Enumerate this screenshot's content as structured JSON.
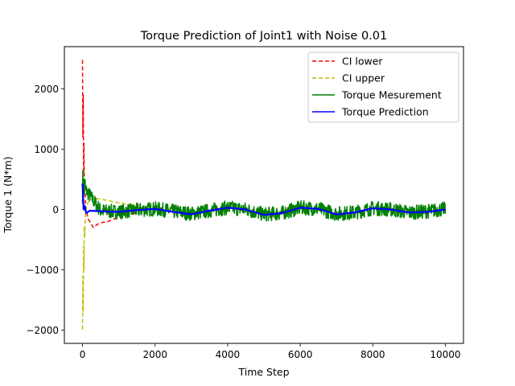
{
  "chart_data": {
    "type": "line",
    "title": "Torque Prediction of Joint1 with Noise 0.01",
    "xlabel": "Time Step",
    "ylabel": "Torque 1 (N*m)",
    "xlim": [
      -500,
      10500
    ],
    "ylim": [
      -2220,
      2700
    ],
    "xticks": [
      0,
      2000,
      4000,
      6000,
      8000,
      10000
    ],
    "xtick_labels": [
      "0",
      "2000",
      "4000",
      "6000",
      "8000",
      "10000"
    ],
    "yticks": [
      -2000,
      -1000,
      0,
      1000,
      2000
    ],
    "ytick_labels": [
      "−2000",
      "−1000",
      "0",
      "1000",
      "2000"
    ],
    "grid": false,
    "legend_position": "top-right",
    "series": [
      {
        "name": "CI lower",
        "color": "#ff0000",
        "style": "dashed",
        "x": [
          0,
          10,
          20,
          30,
          40,
          50,
          60,
          80,
          100,
          150,
          200,
          300,
          400,
          500,
          700,
          900,
          1200,
          1500
        ],
        "y": [
          2480,
          1200,
          1900,
          600,
          1100,
          300,
          500,
          100,
          0,
          -150,
          -200,
          -300,
          -250,
          -220,
          -200,
          -150,
          -100,
          -60
        ]
      },
      {
        "name": "CI upper",
        "color": "#bfbf00",
        "style": "dashed",
        "x": [
          0,
          10,
          20,
          30,
          40,
          50,
          60,
          80,
          100,
          150,
          200,
          300,
          400,
          500,
          700,
          900,
          1200,
          1500
        ],
        "y": [
          -1990,
          -1100,
          -1700,
          -600,
          -1000,
          -300,
          -450,
          -100,
          0,
          120,
          150,
          200,
          180,
          170,
          150,
          120,
          90,
          60
        ]
      },
      {
        "name": "Torque Mesurement",
        "color": "#008000",
        "style": "solid",
        "noise_band": 120,
        "x": [
          0,
          500,
          1000,
          1500,
          2000,
          2500,
          3000,
          3500,
          4000,
          4500,
          5000,
          5500,
          6000,
          6500,
          7000,
          7500,
          8000,
          8500,
          9000,
          9500,
          10000
        ],
        "y": [
          400,
          -20,
          -40,
          -10,
          10,
          -30,
          -70,
          -20,
          30,
          0,
          -80,
          -60,
          30,
          10,
          -70,
          -50,
          20,
          0,
          -50,
          -30,
          10
        ]
      },
      {
        "name": "Torque Prediction",
        "color": "#0000ff",
        "style": "solid",
        "x": [
          0,
          30,
          60,
          100,
          200,
          500,
          1000,
          1500,
          2000,
          2500,
          3000,
          3500,
          4000,
          4500,
          5000,
          5500,
          6000,
          6500,
          7000,
          7500,
          8000,
          8500,
          9000,
          9500,
          10000
        ],
        "y": [
          430,
          0,
          60,
          -60,
          -20,
          -30,
          -40,
          -10,
          10,
          -40,
          -80,
          -20,
          30,
          0,
          -90,
          -60,
          30,
          10,
          -80,
          -50,
          20,
          0,
          -50,
          -40,
          0
        ]
      }
    ]
  }
}
